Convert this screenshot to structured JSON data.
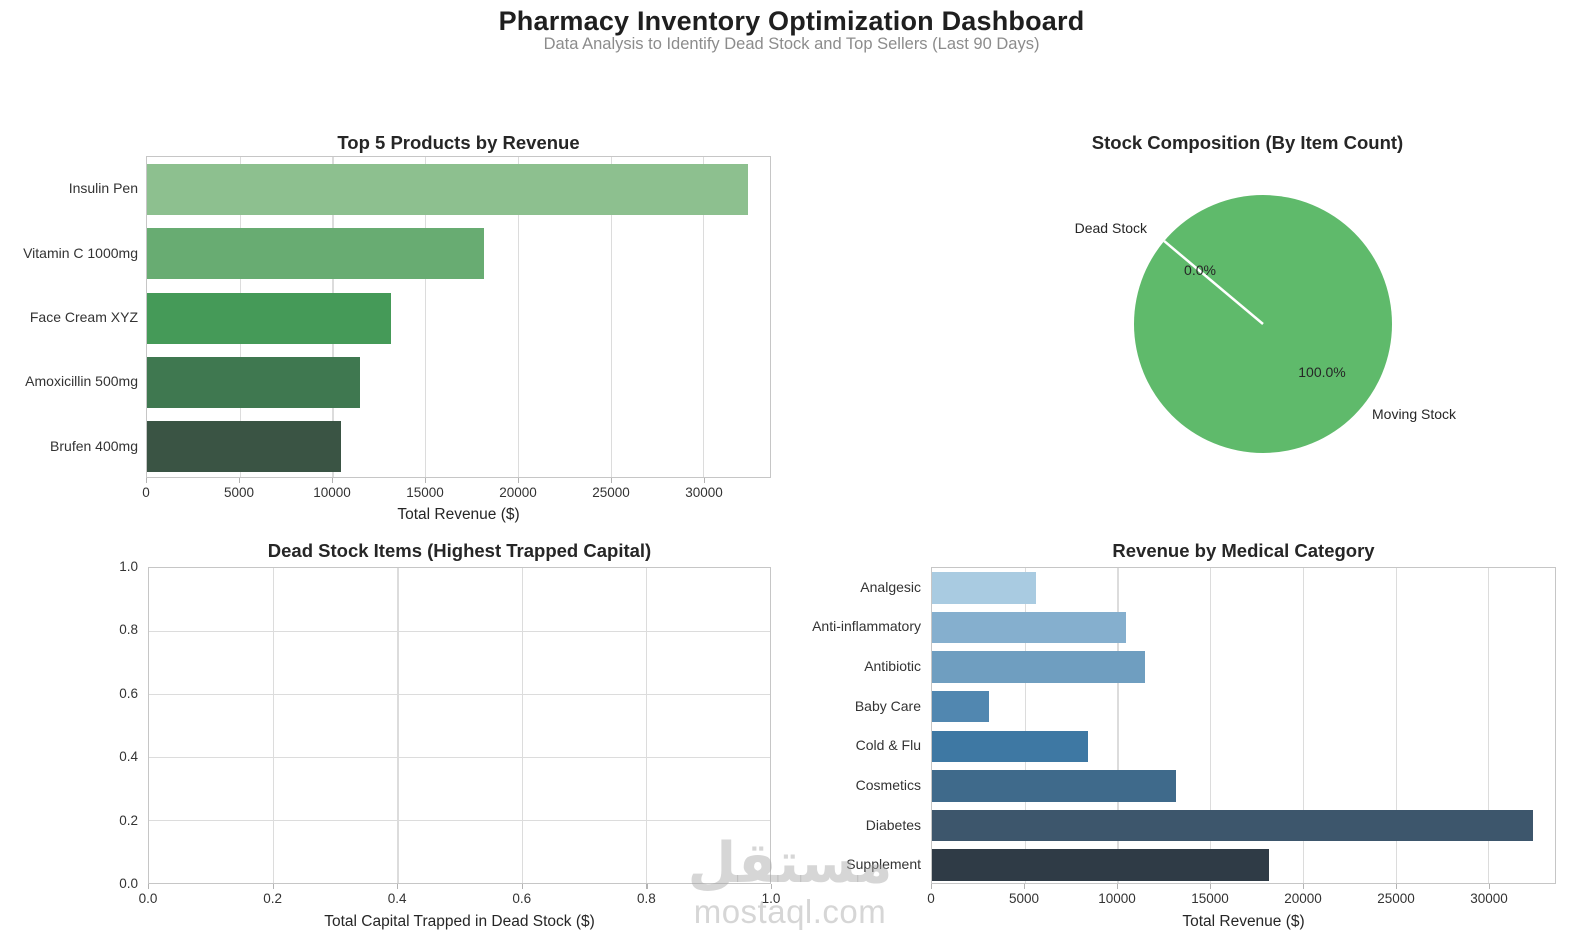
{
  "header": {
    "title": "Pharmacy Inventory Optimization Dashboard",
    "subtitle": "Data Analysis to Identify Dead Stock and Top Sellers (Last 90 Days)"
  },
  "watermark": {
    "logo": "مستقل",
    "domain": "mostaql.com"
  },
  "style_colors": {
    "grid": "#dcdcdc",
    "spine": "#c6c6c6",
    "title_text": "#262626",
    "tick_text": "#333333",
    "subtitle_text": "#8c8c8c"
  },
  "chart_data": [
    {
      "id": "top_products",
      "type": "bar",
      "orientation": "horizontal",
      "title": "Top 5 Products by Revenue",
      "xlabel": "Total Revenue ($)",
      "categories": [
        "Insulin Pen",
        "Vitamin C 1000mg",
        "Face Cream XYZ",
        "Amoxicillin 500mg",
        "Brufen 400mg"
      ],
      "values": [
        32400,
        18150,
        13150,
        11500,
        10450
      ],
      "bar_colors": [
        "#8dc08f",
        "#68ac72",
        "#459a58",
        "#3f7850",
        "#3a5444"
      ],
      "xlim": [
        0,
        33600
      ],
      "xticks": [
        0,
        5000,
        10000,
        15000,
        20000,
        25000,
        30000
      ],
      "grid": "vertical",
      "legend": "none"
    },
    {
      "id": "stock_composition",
      "type": "pie",
      "title": "Stock Composition (By Item Count)",
      "labels": [
        "Dead Stock",
        "Moving Stock"
      ],
      "values": [
        0.0,
        100.0
      ],
      "pct_labels": [
        "0.0%",
        "100.0%"
      ],
      "slice_color": "#5fba6b",
      "divider_color": "#ffffff",
      "divider_angle_deg": 140
    },
    {
      "id": "dead_stock_items",
      "type": "bar",
      "orientation": "horizontal",
      "title": "Dead Stock Items (Highest Trapped Capital)",
      "xlabel": "Total Capital Trapped in Dead Stock ($)",
      "categories": [],
      "values": [],
      "xlim": [
        0,
        1
      ],
      "ylim": [
        0,
        1
      ],
      "xticks": [
        "0.0",
        "0.2",
        "0.4",
        "0.6",
        "0.8",
        "1.0"
      ],
      "yticks": [
        "1.0",
        "0.8",
        "0.6",
        "0.4",
        "0.2",
        "0.0"
      ],
      "grid": "both",
      "note": "axes empty - no bars plotted"
    },
    {
      "id": "category_revenue",
      "type": "bar",
      "orientation": "horizontal",
      "title": "Revenue by Medical Category",
      "xlabel": "Total Revenue ($)",
      "categories": [
        "Analgesic",
        "Anti-inflammatory",
        "Antibiotic",
        "Baby Care",
        "Cold & Flu",
        "Cosmetics",
        "Diabetes",
        "Supplement"
      ],
      "values": [
        5600,
        10450,
        11500,
        3100,
        8400,
        13150,
        32400,
        18150
      ],
      "bar_colors": [
        "#a9cbe1",
        "#85afce",
        "#6f9ec0",
        "#5187b0",
        "#3e78a3",
        "#3f6a8b",
        "#3d566c",
        "#2f3b46"
      ],
      "xlim": [
        0,
        33600
      ],
      "xticks": [
        0,
        5000,
        10000,
        15000,
        20000,
        25000,
        30000
      ],
      "grid": "vertical",
      "legend": "none"
    }
  ]
}
